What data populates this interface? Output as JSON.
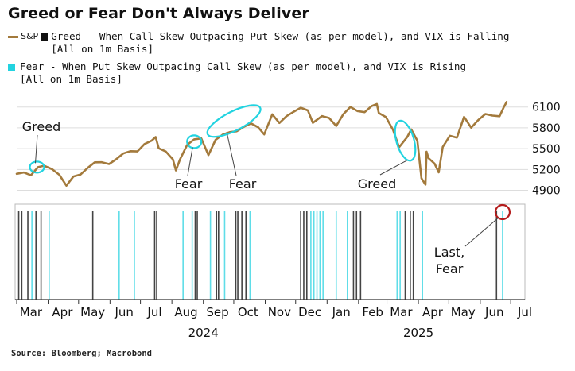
{
  "title": "Greed or Fear Don't Always Deliver",
  "legend": {
    "sp_label": "S&P",
    "greed_line1": "Greed - When Call Skew Outpacing Put Skew (as per model), and VIX is Falling",
    "greed_line2": "[All on 1m Basis]",
    "fear_line1": "Fear - When Put Skew Outpacing Call Skew (as per model), and VIX is Rising",
    "fear_line2": "[All on 1m Basis]"
  },
  "colors": {
    "sp_line": "#a37a3c",
    "greed": "#111111",
    "fear": "#22d3e0",
    "greed_bar": "#444444",
    "fear_bar": "#5fdde8",
    "grid": "#dddddd",
    "last_circle": "#b41c1c"
  },
  "source": "Source: Bloomberg; Macrobond",
  "chart_data": {
    "type": "line",
    "x_axis": {
      "months": [
        "Mar",
        "Apr",
        "May",
        "Jun",
        "Jul",
        "Aug",
        "Sep",
        "Oct",
        "Nov",
        "Dec",
        "Jan",
        "Feb",
        "Mar",
        "Apr",
        "May",
        "Jun",
        "Jul"
      ],
      "years": [
        "2024",
        "2025"
      ],
      "start": "2024-03-01",
      "end": "2025-07-15"
    },
    "y_axis": {
      "ticks": [
        6100,
        5800,
        5500,
        5200,
        4900
      ],
      "range": [
        4780,
        6200
      ]
    },
    "series": [
      {
        "name": "S&P",
        "points": [
          [
            "2024-03-01",
            5137
          ],
          [
            "2024-03-08",
            5157
          ],
          [
            "2024-03-15",
            5117
          ],
          [
            "2024-03-22",
            5234
          ],
          [
            "2024-03-28",
            5254
          ],
          [
            "2024-04-05",
            5204
          ],
          [
            "2024-04-12",
            5123
          ],
          [
            "2024-04-19",
            4967
          ],
          [
            "2024-04-26",
            5100
          ],
          [
            "2024-05-03",
            5128
          ],
          [
            "2024-05-10",
            5223
          ],
          [
            "2024-05-17",
            5303
          ],
          [
            "2024-05-24",
            5305
          ],
          [
            "2024-05-31",
            5278
          ],
          [
            "2024-06-07",
            5347
          ],
          [
            "2024-06-14",
            5431
          ],
          [
            "2024-06-21",
            5464
          ],
          [
            "2024-06-28",
            5460
          ],
          [
            "2024-07-05",
            5567
          ],
          [
            "2024-07-12",
            5615
          ],
          [
            "2024-07-16",
            5667
          ],
          [
            "2024-07-19",
            5505
          ],
          [
            "2024-07-26",
            5459
          ],
          [
            "2024-08-02",
            5346
          ],
          [
            "2024-08-05",
            5186
          ],
          [
            "2024-08-09",
            5344
          ],
          [
            "2024-08-16",
            5554
          ],
          [
            "2024-08-23",
            5634
          ],
          [
            "2024-08-30",
            5648
          ],
          [
            "2024-09-06",
            5408
          ],
          [
            "2024-09-13",
            5626
          ],
          [
            "2024-09-20",
            5702
          ],
          [
            "2024-09-27",
            5738
          ],
          [
            "2024-10-04",
            5751
          ],
          [
            "2024-10-11",
            5815
          ],
          [
            "2024-10-18",
            5864
          ],
          [
            "2024-10-25",
            5808
          ],
          [
            "2024-10-31",
            5705
          ],
          [
            "2024-11-08",
            5995
          ],
          [
            "2024-11-15",
            5870
          ],
          [
            "2024-11-22",
            5969
          ],
          [
            "2024-11-29",
            6032
          ],
          [
            "2024-12-06",
            6090
          ],
          [
            "2024-12-13",
            6051
          ],
          [
            "2024-12-18",
            5872
          ],
          [
            "2024-12-27",
            5970
          ],
          [
            "2025-01-03",
            5942
          ],
          [
            "2025-01-10",
            5827
          ],
          [
            "2025-01-17",
            5997
          ],
          [
            "2025-01-24",
            6101
          ],
          [
            "2025-01-31",
            6041
          ],
          [
            "2025-02-07",
            6026
          ],
          [
            "2025-02-14",
            6115
          ],
          [
            "2025-02-19",
            6144
          ],
          [
            "2025-02-21",
            6013
          ],
          [
            "2025-02-28",
            5955
          ],
          [
            "2025-03-07",
            5770
          ],
          [
            "2025-03-13",
            5521
          ],
          [
            "2025-03-21",
            5667
          ],
          [
            "2025-03-25",
            5777
          ],
          [
            "2025-03-31",
            5612
          ],
          [
            "2025-04-04",
            5074
          ],
          [
            "2025-04-08",
            4982
          ],
          [
            "2025-04-09",
            5457
          ],
          [
            "2025-04-11",
            5363
          ],
          [
            "2025-04-17",
            5283
          ],
          [
            "2025-04-21",
            5158
          ],
          [
            "2025-04-25",
            5525
          ],
          [
            "2025-05-02",
            5686
          ],
          [
            "2025-05-09",
            5660
          ],
          [
            "2025-05-16",
            5958
          ],
          [
            "2025-05-23",
            5803
          ],
          [
            "2025-05-30",
            5912
          ],
          [
            "2025-06-06",
            6000
          ],
          [
            "2025-06-13",
            5977
          ],
          [
            "2025-06-20",
            5968
          ],
          [
            "2025-06-24",
            6092
          ],
          [
            "2025-06-27",
            6173
          ]
        ]
      }
    ],
    "greed_signals": [
      "2024-03-03",
      "2024-03-06",
      "2024-03-12",
      "2024-03-20",
      "2024-03-25",
      "2024-05-15",
      "2024-07-15",
      "2024-07-17",
      "2024-08-24",
      "2024-08-26",
      "2024-09-14",
      "2024-09-16",
      "2024-10-03",
      "2024-10-05",
      "2024-10-09",
      "2024-10-13",
      "2024-12-06",
      "2024-12-09",
      "2024-12-12",
      "2025-01-27",
      "2025-01-30",
      "2025-02-03",
      "2025-03-19",
      "2025-03-24",
      "2025-03-27",
      "2025-06-17"
    ],
    "fear_signals": [
      "2024-03-16",
      "2024-04-02",
      "2024-06-10",
      "2024-06-25",
      "2024-08-12",
      "2024-08-21",
      "2024-09-08",
      "2024-09-22",
      "2024-10-17",
      "2024-12-16",
      "2024-12-19",
      "2024-12-22",
      "2024-12-25",
      "2024-12-28",
      "2025-01-10",
      "2025-01-21",
      "2025-03-11",
      "2025-03-14",
      "2025-04-05",
      "2025-06-23"
    ],
    "annotations": [
      {
        "label": "Greed",
        "kind": "greed",
        "date": "2024-03-21",
        "value": 5234
      },
      {
        "label": "Fear",
        "kind": "fear",
        "date": "2024-08-23",
        "value": 5600
      },
      {
        "label": "Fear",
        "kind": "fear",
        "date": "2024-09-28",
        "value": 5830
      },
      {
        "label": "Greed",
        "kind": "greed",
        "date": "2025-03-19",
        "value": 5650
      },
      {
        "label": "Last, Fear",
        "kind": "fear",
        "date": "2025-06-23",
        "value": null
      }
    ]
  }
}
